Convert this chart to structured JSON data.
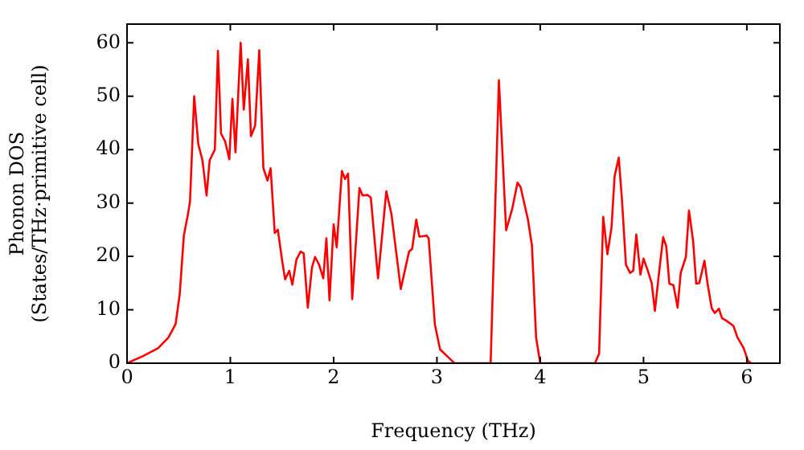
{
  "chart_data": {
    "type": "line",
    "xlabel": "Frequency (THz)",
    "ylabel": "Phonon DOS\n(States/THz·primitive cell)",
    "xlim": [
      0,
      6.32
    ],
    "ylim": [
      0,
      63.5
    ],
    "xticks": [
      0,
      1,
      2,
      3,
      4,
      5,
      6
    ],
    "yticks": [
      0,
      10,
      20,
      30,
      40,
      50,
      60
    ],
    "grid": false,
    "legend": false,
    "marker": "none",
    "line_style": "solid",
    "series": [
      {
        "color": "#ff0000",
        "x": [
          0,
          0.15,
          0.3,
          0.4,
          0.47,
          0.51,
          0.55,
          0.59,
          0.61,
          0.65,
          0.69,
          0.73,
          0.77,
          0.8,
          0.85,
          0.88,
          0.91,
          0.95,
          0.99,
          1.02,
          1.05,
          1.1,
          1.13,
          1.17,
          1.2,
          1.24,
          1.28,
          1.32,
          1.36,
          1.39,
          1.43,
          1.46,
          1.5,
          1.53,
          1.57,
          1.6,
          1.64,
          1.68,
          1.71,
          1.75,
          1.79,
          1.82,
          1.86,
          1.9,
          1.93,
          1.96,
          2.0,
          2.03,
          2.08,
          2.11,
          2.14,
          2.18,
          2.25,
          2.28,
          2.33,
          2.36,
          2.43,
          2.51,
          2.56,
          2.65,
          2.73,
          2.76,
          2.8,
          2.83,
          2.9,
          2.92,
          2.98,
          3.03,
          3.1,
          3.17,
          3.52,
          3.6,
          3.67,
          3.73,
          3.78,
          3.81,
          3.88,
          3.92,
          3.96,
          4.0,
          4.53,
          4.57,
          4.61,
          4.65,
          4.69,
          4.72,
          4.76,
          4.79,
          4.83,
          4.87,
          4.9,
          4.93,
          4.97,
          5.0,
          5.04,
          5.08,
          5.11,
          5.15,
          5.19,
          5.22,
          5.25,
          5.29,
          5.33,
          5.36,
          5.41,
          5.44,
          5.48,
          5.51,
          5.54,
          5.59,
          5.62,
          5.66,
          5.69,
          5.73,
          5.76,
          5.8,
          5.87,
          5.91,
          5.97,
          6.01,
          6.04
        ],
        "values": [
          0,
          1.3,
          2.8,
          4.8,
          7.3,
          12.9,
          23.9,
          27.9,
          30.4,
          50,
          41,
          38,
          31.4,
          38,
          40,
          58.5,
          43,
          41.5,
          38.2,
          49.5,
          39.5,
          60,
          47.5,
          56.9,
          42.5,
          44.5,
          58.6,
          36.5,
          34.2,
          36.5,
          24.4,
          25,
          19.4,
          15.7,
          17.3,
          14.7,
          19.4,
          20.9,
          20.6,
          10.4,
          17.9,
          19.9,
          18.4,
          15.9,
          23.4,
          11.8,
          26,
          21.7,
          36,
          34.5,
          35.5,
          12,
          32.8,
          31.4,
          31.5,
          31,
          15.9,
          32.2,
          27.9,
          13.9,
          20.9,
          21.4,
          26.9,
          23.7,
          23.9,
          23.4,
          7.3,
          2.6,
          1.3,
          0,
          0,
          53,
          24.9,
          29,
          33.8,
          33,
          27,
          22,
          4.8,
          0,
          0,
          1.8,
          27.4,
          20.4,
          25.4,
          35,
          38.5,
          31,
          18.4,
          16.9,
          17.3,
          24.1,
          16.6,
          19.6,
          17.4,
          14.9,
          9.8,
          16.9,
          23.6,
          21.9,
          14.9,
          14.6,
          10.4,
          16.9,
          19.9,
          28.6,
          22.9,
          14.9,
          15,
          19.2,
          14.9,
          10.3,
          9.4,
          10.2,
          8.4,
          8,
          7,
          4.8,
          2.8,
          0.5,
          0
        ]
      }
    ]
  }
}
